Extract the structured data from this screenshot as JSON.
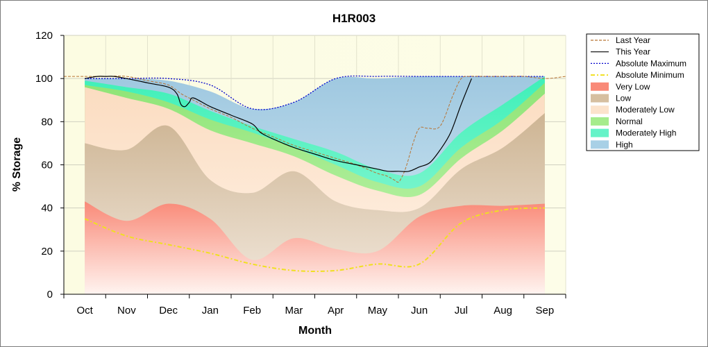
{
  "chart_data": {
    "type": "area",
    "title": "H1R003",
    "xlabel": "Month",
    "ylabel": "% Storage",
    "ylim": [
      0,
      120
    ],
    "yticks": [
      0,
      20,
      40,
      60,
      80,
      100,
      120
    ],
    "categories": [
      "Oct",
      "Nov",
      "Dec",
      "Jan",
      "Feb",
      "Mar",
      "Apr",
      "May",
      "Jun",
      "Jul",
      "Aug",
      "Sep"
    ],
    "legend_position": "right",
    "x_domain": [
      -0.5,
      11.5
    ],
    "band_x": [
      0,
      1,
      2,
      3,
      4,
      5,
      6,
      7,
      8,
      9,
      10,
      11
    ],
    "band_bounds": {
      "very_low_top": [
        43,
        34,
        42,
        35,
        16,
        26,
        21,
        20,
        36,
        41,
        41,
        42
      ],
      "low_top": [
        70,
        67,
        78,
        53,
        47,
        57,
        43,
        39,
        40,
        58,
        68,
        84
      ],
      "moderately_low_top": [
        96,
        91,
        86,
        76,
        70,
        64,
        55,
        48,
        46,
        63,
        76,
        93
      ],
      "normal_top": [
        97,
        94,
        89,
        81,
        75,
        68,
        60,
        52,
        50,
        68,
        81,
        98
      ],
      "moderately_high_top": [
        99,
        96,
        93,
        85,
        78,
        72,
        66,
        58,
        56,
        75,
        88,
        101
      ],
      "high_top": [
        100,
        100,
        99,
        94,
        86,
        89,
        100,
        100,
        101,
        101,
        101,
        101
      ]
    },
    "series": [
      {
        "name": "Last Year",
        "color": "#b87333",
        "style": "dashed",
        "x": [
          -0.5,
          0,
          0.5,
          1,
          1.5,
          2,
          2.3,
          2.6,
          3,
          3.5,
          4,
          4.5,
          5,
          5.5,
          6,
          6.5,
          7,
          7.2,
          7.4,
          7.5,
          7.6,
          7.7,
          7.85,
          8,
          8.2,
          8.5,
          8.8,
          9,
          9.2,
          9.5,
          10,
          10.5,
          11,
          11.5
        ],
        "y": [
          101,
          101,
          101,
          101,
          99,
          97,
          93,
          90,
          86,
          82,
          77,
          73,
          69,
          66,
          63,
          60,
          56,
          55,
          53,
          52,
          55,
          60,
          70,
          77,
          77,
          78,
          92,
          100,
          101,
          101,
          101,
          101,
          100,
          101
        ]
      },
      {
        "name": "This Year",
        "color": "#000000",
        "style": "solid",
        "x": [
          0,
          0.3,
          0.5,
          0.7,
          1,
          1.5,
          2,
          2.2,
          2.3,
          2.4,
          2.5,
          2.6,
          3,
          3.5,
          4,
          4.2,
          4.5,
          5,
          5.5,
          6,
          6.5,
          7,
          7.25,
          7.5,
          7.75,
          8,
          8.25,
          8.5,
          8.75,
          9,
          9.25
        ],
        "y": [
          100,
          101,
          101,
          101,
          100,
          98,
          96,
          93,
          88,
          87,
          89,
          91,
          87,
          83,
          79,
          75,
          72,
          68,
          65,
          62,
          60,
          58,
          57,
          57,
          57,
          59,
          61,
          67,
          75,
          88,
          100
        ]
      },
      {
        "name": "Absolute Maximum",
        "color": "#0000cc",
        "style": "dotted",
        "x": [
          0,
          1,
          2,
          3,
          4,
          5,
          6,
          7,
          8,
          9,
          10,
          11
        ],
        "y": [
          100,
          100,
          100,
          97,
          86,
          89,
          100,
          101,
          101,
          101,
          101,
          101
        ]
      },
      {
        "name": "Absolute Minimum",
        "color": "#f0e020",
        "style": "dashdot",
        "x": [
          0,
          1,
          2,
          3,
          4,
          5,
          6,
          7,
          8,
          9,
          10,
          11
        ],
        "y": [
          35,
          27,
          23,
          19,
          14,
          11,
          11,
          14,
          14,
          33,
          39,
          40
        ]
      }
    ],
    "legend": [
      {
        "label": "Last Year",
        "kind": "line",
        "color": "#b87333",
        "style": "dashed"
      },
      {
        "label": "This Year",
        "kind": "line",
        "color": "#000000",
        "style": "solid"
      },
      {
        "label": "Absolute Maximum",
        "kind": "line",
        "color": "#0000cc",
        "style": "dotted"
      },
      {
        "label": "Absolute Minimum",
        "kind": "line",
        "color": "#f0e020",
        "style": "dashdot"
      },
      {
        "label": "Very Low",
        "kind": "band",
        "color": "#f98a78"
      },
      {
        "label": "Low",
        "kind": "band",
        "color": "#d6bfa0"
      },
      {
        "label": "Moderately Low",
        "kind": "band",
        "color": "#fce3cc"
      },
      {
        "label": "Normal",
        "kind": "band",
        "color": "#a5ec8c"
      },
      {
        "label": "Moderately High",
        "kind": "band",
        "color": "#66f3c8"
      },
      {
        "label": "High",
        "kind": "band",
        "color": "#a8d0e6"
      }
    ],
    "colors": {
      "plot_background": "#fcfce6",
      "grid": "#c0c0c0"
    }
  }
}
